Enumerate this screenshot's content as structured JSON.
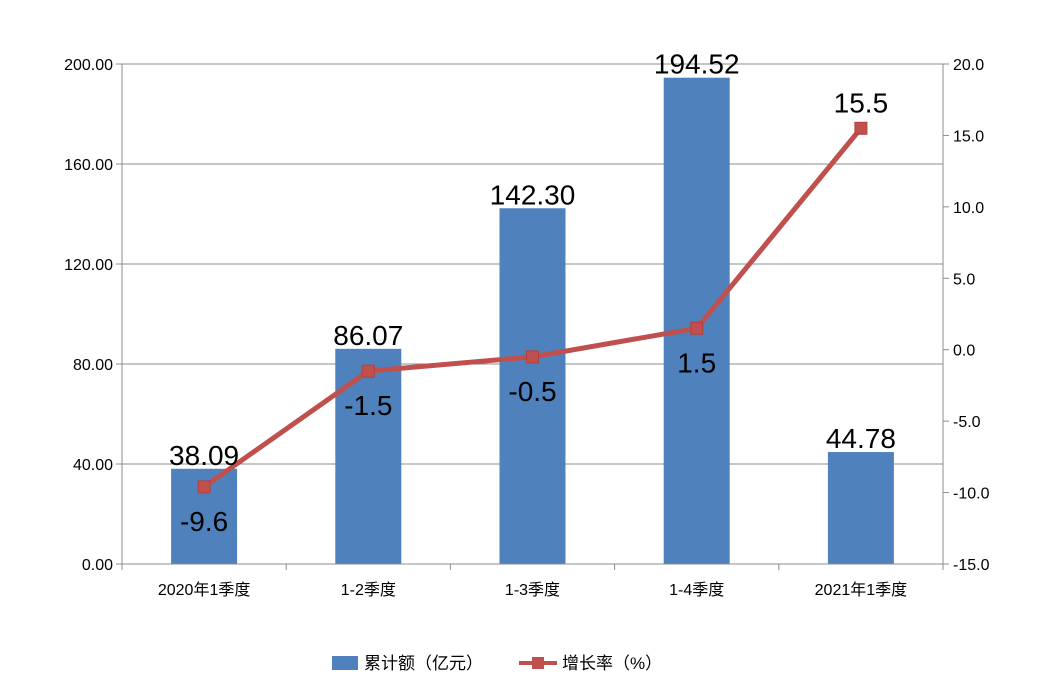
{
  "chart_data": {
    "type": "bar+line",
    "categories": [
      "2020年1季度",
      "1-2季度",
      "1-3季度",
      "1-4季度",
      "2021年1季度"
    ],
    "series": [
      {
        "name": "累计额（亿元）",
        "type": "bar",
        "axis": "left",
        "values": [
          38.09,
          86.07,
          142.3,
          194.52,
          44.78
        ],
        "labels": [
          "38.09",
          "86.07",
          "142.30",
          "194.52",
          "44.78"
        ],
        "color": "#4F81BD"
      },
      {
        "name": "增长率（%）",
        "type": "line",
        "axis": "right",
        "values": [
          -9.6,
          -1.5,
          -0.5,
          1.5,
          15.5
        ],
        "labels": [
          "-9.6",
          "-1.5",
          "-0.5",
          "1.5",
          "15.5"
        ],
        "color": "#C0504D"
      }
    ],
    "y_left": {
      "ylim": [
        0,
        200
      ],
      "ticks": [
        "0.00",
        "40.00",
        "80.00",
        "120.00",
        "160.00",
        "200.00"
      ]
    },
    "y_right": {
      "ylim": [
        -15,
        20
      ],
      "ticks": [
        "-15.0",
        "-10.0",
        "-5.0",
        "0.0",
        "5.0",
        "10.0",
        "15.0",
        "20.0"
      ]
    },
    "grid": true,
    "legend": "bottom"
  }
}
